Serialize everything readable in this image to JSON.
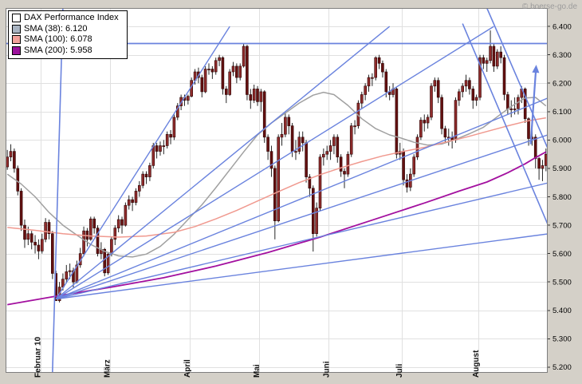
{
  "watermark": "© boerse-go.de",
  "legend": {
    "title": "DAX Performance Index",
    "items": [
      {
        "label": "SMA (38): 6.120",
        "color": "#a9b4c2"
      },
      {
        "label": "SMA (100): 6.078",
        "color": "#f2a19b"
      },
      {
        "label": "SMA (200): 5.958",
        "color": "#9b109b"
      }
    ]
  },
  "chart_data": {
    "type": "candlestick",
    "title": "DAX Performance Index",
    "ylim": [
      5180,
      6465
    ],
    "grid": true,
    "yticks": [
      {
        "v": 6400,
        "label": "6.400"
      },
      {
        "v": 6300,
        "label": "6.300"
      },
      {
        "v": 6200,
        "label": "6.200"
      },
      {
        "v": 6100,
        "label": "6.100"
      },
      {
        "v": 6000,
        "label": "6.000"
      },
      {
        "v": 5900,
        "label": "5.900"
      },
      {
        "v": 5800,
        "label": "5.800"
      },
      {
        "v": 5700,
        "label": "5.700"
      },
      {
        "v": 5600,
        "label": "5.600"
      },
      {
        "v": 5500,
        "label": "5.500"
      },
      {
        "v": 5400,
        "label": "5.400"
      },
      {
        "v": 5300,
        "label": "5.300"
      },
      {
        "v": 5200,
        "label": "5.200"
      }
    ],
    "months": [
      {
        "label": "Februar 10",
        "i": 10
      },
      {
        "label": "März",
        "i": 30
      },
      {
        "label": "April",
        "i": 53
      },
      {
        "label": "Mai",
        "i": 73
      },
      {
        "label": "Juni",
        "i": 93
      },
      {
        "label": "Juli",
        "i": 114
      },
      {
        "label": "August",
        "i": 136
      }
    ],
    "style": {
      "up": "#8f2b2b",
      "down": "#641010",
      "wick": "#262626",
      "body_stroke": "#2e0606"
    },
    "candles": [
      [
        5905,
        5965,
        5895,
        5940
      ],
      [
        5940,
        5985,
        5925,
        5960
      ],
      [
        5960,
        5970,
        5885,
        5900
      ],
      [
        5900,
        5910,
        5805,
        5820
      ],
      [
        5820,
        5830,
        5680,
        5700
      ],
      [
        5700,
        5720,
        5620,
        5650
      ],
      [
        5650,
        5695,
        5630,
        5670
      ],
      [
        5670,
        5680,
        5615,
        5640
      ],
      [
        5640,
        5665,
        5600,
        5630
      ],
      [
        5630,
        5650,
        5580,
        5609
      ],
      [
        5609,
        5670,
        5600,
        5650
      ],
      [
        5650,
        5725,
        5640,
        5710
      ],
      [
        5710,
        5720,
        5650,
        5670
      ],
      [
        5670,
        5680,
        5510,
        5530
      ],
      [
        5530,
        5540,
        5433,
        5434
      ],
      [
        5434,
        5500,
        5428,
        5482
      ],
      [
        5482,
        5530,
        5470,
        5510
      ],
      [
        5510,
        5560,
        5495,
        5536
      ],
      [
        5536,
        5565,
        5510,
        5540
      ],
      [
        5540,
        5550,
        5480,
        5500
      ],
      [
        5500,
        5575,
        5495,
        5560
      ],
      [
        5560,
        5620,
        5550,
        5600
      ],
      [
        5600,
        5695,
        5590,
        5680
      ],
      [
        5680,
        5690,
        5625,
        5650
      ],
      [
        5650,
        5730,
        5645,
        5722
      ],
      [
        5722,
        5730,
        5670,
        5690
      ],
      [
        5690,
        5700,
        5590,
        5600
      ],
      [
        5600,
        5640,
        5580,
        5615
      ],
      [
        5615,
        5620,
        5520,
        5532
      ],
      [
        5532,
        5605,
        5525,
        5598
      ],
      [
        5598,
        5660,
        5590,
        5650
      ],
      [
        5650,
        5700,
        5630,
        5690
      ],
      [
        5690,
        5735,
        5675,
        5720
      ],
      [
        5720,
        5730,
        5670,
        5700
      ],
      [
        5700,
        5780,
        5695,
        5770
      ],
      [
        5770,
        5805,
        5755,
        5790
      ],
      [
        5790,
        5800,
        5750,
        5780
      ],
      [
        5780,
        5830,
        5770,
        5820
      ],
      [
        5820,
        5855,
        5800,
        5840
      ],
      [
        5840,
        5890,
        5830,
        5880
      ],
      [
        5880,
        5890,
        5845,
        5870
      ],
      [
        5870,
        5920,
        5855,
        5910
      ],
      [
        5910,
        5990,
        5900,
        5980
      ],
      [
        5980,
        5990,
        5935,
        5960
      ],
      [
        5960,
        5995,
        5945,
        5980
      ],
      [
        5980,
        6000,
        5950,
        5980
      ],
      [
        5980,
        6030,
        5970,
        6020
      ],
      [
        6020,
        6035,
        5985,
        6010
      ],
      [
        6010,
        6090,
        6000,
        6080
      ],
      [
        6080,
        6130,
        6070,
        6120
      ],
      [
        6120,
        6160,
        6105,
        6150
      ],
      [
        6150,
        6160,
        6120,
        6140
      ],
      [
        6140,
        6160,
        6125,
        6154
      ],
      [
        6154,
        6220,
        6150,
        6210
      ],
      [
        6210,
        6250,
        6195,
        6240
      ],
      [
        6240,
        6255,
        6200,
        6220
      ],
      [
        6220,
        6230,
        6150,
        6170
      ],
      [
        6170,
        6260,
        6165,
        6250
      ],
      [
        6250,
        6270,
        6230,
        6250
      ],
      [
        6250,
        6260,
        6215,
        6240
      ],
      [
        6240,
        6290,
        6230,
        6280
      ],
      [
        6280,
        6300,
        6260,
        6290
      ],
      [
        6290,
        6295,
        6160,
        6180
      ],
      [
        6180,
        6190,
        6130,
        6160
      ],
      [
        6160,
        6250,
        6155,
        6240
      ],
      [
        6240,
        6275,
        6225,
        6260
      ],
      [
        6260,
        6270,
        6200,
        6220
      ],
      [
        6220,
        6270,
        6210,
        6260
      ],
      [
        6260,
        6341,
        6255,
        6330
      ],
      [
        6330,
        6335,
        6140,
        6160
      ],
      [
        6160,
        6180,
        6110,
        6140
      ],
      [
        6140,
        6195,
        6130,
        6180
      ],
      [
        6180,
        6190,
        6120,
        6135
      ],
      [
        6135,
        6180,
        6100,
        6170
      ],
      [
        6170,
        6175,
        5990,
        6010
      ],
      [
        6010,
        6020,
        5930,
        5960
      ],
      [
        5960,
        5980,
        5870,
        5900
      ],
      [
        5900,
        5910,
        5650,
        5715
      ],
      [
        5715,
        6020,
        5710,
        6010
      ],
      [
        6010,
        6060,
        5980,
        6020
      ],
      [
        6020,
        6100,
        6010,
        6080
      ],
      [
        6080,
        6090,
        6020,
        6050
      ],
      [
        6050,
        6060,
        5940,
        5960
      ],
      [
        5960,
        6000,
        5930,
        5960
      ],
      [
        5960,
        6030,
        5950,
        6010
      ],
      [
        6010,
        6030,
        5960,
        5990
      ],
      [
        5990,
        6000,
        5850,
        5870
      ],
      [
        5870,
        5880,
        5800,
        5830
      ],
      [
        5830,
        5840,
        5607,
        5670
      ],
      [
        5670,
        5780,
        5660,
        5760
      ],
      [
        5760,
        5950,
        5750,
        5940
      ],
      [
        5940,
        5970,
        5910,
        5950
      ],
      [
        5950,
        5980,
        5930,
        5960
      ],
      [
        5960,
        6000,
        5930,
        5980
      ],
      [
        5980,
        6020,
        5950,
        6010
      ],
      [
        6010,
        6020,
        5920,
        5940
      ],
      [
        5940,
        5950,
        5870,
        5890
      ],
      [
        5890,
        5900,
        5830,
        5880
      ],
      [
        5880,
        5960,
        5870,
        5950
      ],
      [
        5950,
        6060,
        5940,
        6050
      ],
      [
        6050,
        6070,
        6020,
        6050
      ],
      [
        6050,
        6140,
        6040,
        6130
      ],
      [
        6130,
        6170,
        6110,
        6160
      ],
      [
        6160,
        6200,
        6140,
        6190
      ],
      [
        6190,
        6230,
        6170,
        6220
      ],
      [
        6220,
        6235,
        6190,
        6220
      ],
      [
        6220,
        6295,
        6210,
        6290
      ],
      [
        6290,
        6300,
        6250,
        6270
      ],
      [
        6270,
        6280,
        6220,
        6240
      ],
      [
        6240,
        6250,
        6150,
        6170
      ],
      [
        6170,
        6190,
        6140,
        6160
      ],
      [
        6160,
        6200,
        6150,
        6180
      ],
      [
        6180,
        6185,
        5935,
        5950
      ],
      [
        5950,
        5990,
        5930,
        5960
      ],
      [
        5960,
        5970,
        5840,
        5860
      ],
      [
        5860,
        5880,
        5815,
        5834
      ],
      [
        5834,
        5900,
        5820,
        5880
      ],
      [
        5880,
        5950,
        5870,
        5940
      ],
      [
        5940,
        6020,
        5930,
        6010
      ],
      [
        6010,
        6080,
        6000,
        6070
      ],
      [
        6070,
        6090,
        6030,
        6060
      ],
      [
        6060,
        6090,
        6040,
        6080
      ],
      [
        6080,
        6200,
        6070,
        6190
      ],
      [
        6190,
        6220,
        6170,
        6210
      ],
      [
        6210,
        6220,
        6130,
        6150
      ],
      [
        6150,
        6160,
        6020,
        6040
      ],
      [
        6040,
        6050,
        5990,
        6010
      ],
      [
        6010,
        6040,
        5980,
        6010
      ],
      [
        6010,
        6030,
        5970,
        6000
      ],
      [
        6000,
        6150,
        5990,
        6140
      ],
      [
        6140,
        6180,
        6120,
        6170
      ],
      [
        6170,
        6200,
        6150,
        6190
      ],
      [
        6190,
        6230,
        6170,
        6210
      ],
      [
        6210,
        6220,
        6160,
        6180
      ],
      [
        6180,
        6190,
        6110,
        6140
      ],
      [
        6140,
        6160,
        6120,
        6150
      ],
      [
        6150,
        6300,
        6140,
        6290
      ],
      [
        6290,
        6300,
        6250,
        6270
      ],
      [
        6270,
        6290,
        6240,
        6280
      ],
      [
        6280,
        6386,
        6270,
        6330
      ],
      [
        6330,
        6340,
        6240,
        6260
      ],
      [
        6260,
        6320,
        6250,
        6310
      ],
      [
        6310,
        6330,
        6270,
        6290
      ],
      [
        6290,
        6300,
        6140,
        6160
      ],
      [
        6160,
        6170,
        6090,
        6110
      ],
      [
        6110,
        6140,
        6080,
        6110
      ],
      [
        6110,
        6150,
        6090,
        6110
      ],
      [
        6110,
        6160,
        6090,
        6150
      ],
      [
        6150,
        6190,
        6130,
        6180
      ],
      [
        6180,
        6185,
        6060,
        6075
      ],
      [
        6075,
        6080,
        5980,
        6005
      ],
      [
        6005,
        6040,
        5980,
        6010
      ],
      [
        6010,
        6020,
        5900,
        5935
      ],
      [
        5935,
        5940,
        5860,
        5900
      ],
      [
        5900,
        5930,
        5855,
        5910
      ],
      [
        5910,
        5970,
        5890,
        5950
      ]
    ],
    "sma": [
      {
        "id": "sma-38-line",
        "name": "SMA (38)",
        "last": 6120,
        "color": "#a0a0a0",
        "width": 1.5,
        "points": [
          [
            0,
            5880
          ],
          [
            4,
            5845
          ],
          [
            8,
            5800
          ],
          [
            12,
            5745
          ],
          [
            16,
            5700
          ],
          [
            20,
            5665
          ],
          [
            24,
            5632
          ],
          [
            28,
            5608
          ],
          [
            32,
            5592
          ],
          [
            36,
            5588
          ],
          [
            40,
            5598
          ],
          [
            44,
            5625
          ],
          [
            48,
            5668
          ],
          [
            52,
            5720
          ],
          [
            56,
            5772
          ],
          [
            60,
            5832
          ],
          [
            64,
            5895
          ],
          [
            68,
            5958
          ],
          [
            72,
            6018
          ],
          [
            76,
            6060
          ],
          [
            80,
            6095
          ],
          [
            84,
            6130
          ],
          [
            88,
            6158
          ],
          [
            91,
            6168
          ],
          [
            94,
            6160
          ],
          [
            98,
            6122
          ],
          [
            102,
            6075
          ],
          [
            106,
            6040
          ],
          [
            110,
            6018
          ],
          [
            113,
            6008
          ],
          [
            117,
            5992
          ],
          [
            121,
            5982
          ],
          [
            125,
            5986
          ],
          [
            129,
            6002
          ],
          [
            133,
            6022
          ],
          [
            137,
            6045
          ],
          [
            141,
            6082
          ],
          [
            145,
            6118
          ],
          [
            149,
            6148
          ],
          [
            152,
            6150
          ],
          [
            155,
            6120
          ]
        ]
      },
      {
        "id": "sma-100-line",
        "name": "SMA (100)",
        "last": 6078,
        "color": "#f0998f",
        "width": 1.5,
        "points": [
          [
            0,
            5692
          ],
          [
            8,
            5682
          ],
          [
            16,
            5670
          ],
          [
            24,
            5662
          ],
          [
            32,
            5658
          ],
          [
            40,
            5662
          ],
          [
            48,
            5675
          ],
          [
            54,
            5695
          ],
          [
            60,
            5722
          ],
          [
            66,
            5752
          ],
          [
            72,
            5785
          ],
          [
            78,
            5818
          ],
          [
            84,
            5850
          ],
          [
            90,
            5878
          ],
          [
            96,
            5902
          ],
          [
            102,
            5924
          ],
          [
            108,
            5944
          ],
          [
            114,
            5960
          ],
          [
            120,
            5974
          ],
          [
            126,
            5992
          ],
          [
            132,
            6010
          ],
          [
            138,
            6030
          ],
          [
            144,
            6050
          ],
          [
            150,
            6068
          ],
          [
            155,
            6078
          ]
        ]
      },
      {
        "id": "sma-200-line",
        "name": "SMA (200)",
        "last": 5958,
        "color": "#a3109f",
        "width": 1.8,
        "points": [
          [
            0,
            5420
          ],
          [
            15,
            5452
          ],
          [
            30,
            5482
          ],
          [
            45,
            5515
          ],
          [
            60,
            5556
          ],
          [
            75,
            5604
          ],
          [
            90,
            5658
          ],
          [
            105,
            5718
          ],
          [
            120,
            5778
          ],
          [
            130,
            5820
          ],
          [
            138,
            5852
          ],
          [
            144,
            5885
          ],
          [
            149,
            5916
          ],
          [
            152,
            5938
          ],
          [
            155,
            5958
          ]
        ]
      }
    ],
    "overlays": {
      "color": "#6a83de",
      "hlines": [
        6340
      ],
      "rays": {
        "origin": [
          14,
          5440
        ],
        "targets": [
          [
            64,
            6400
          ],
          [
            110,
            6400
          ],
          [
            140,
            6400
          ],
          [
            156,
            6150
          ],
          [
            156,
            6020
          ],
          [
            156,
            5850
          ],
          [
            156,
            5670
          ]
        ]
      },
      "segments": [
        [
          13,
          5180,
          16,
          6465
        ],
        [
          131,
          6410,
          157,
          5660
        ],
        [
          138,
          6465,
          158,
          5900
        ]
      ],
      "arrow": [
        150.6,
        5985,
        152.2,
        6265
      ]
    }
  }
}
